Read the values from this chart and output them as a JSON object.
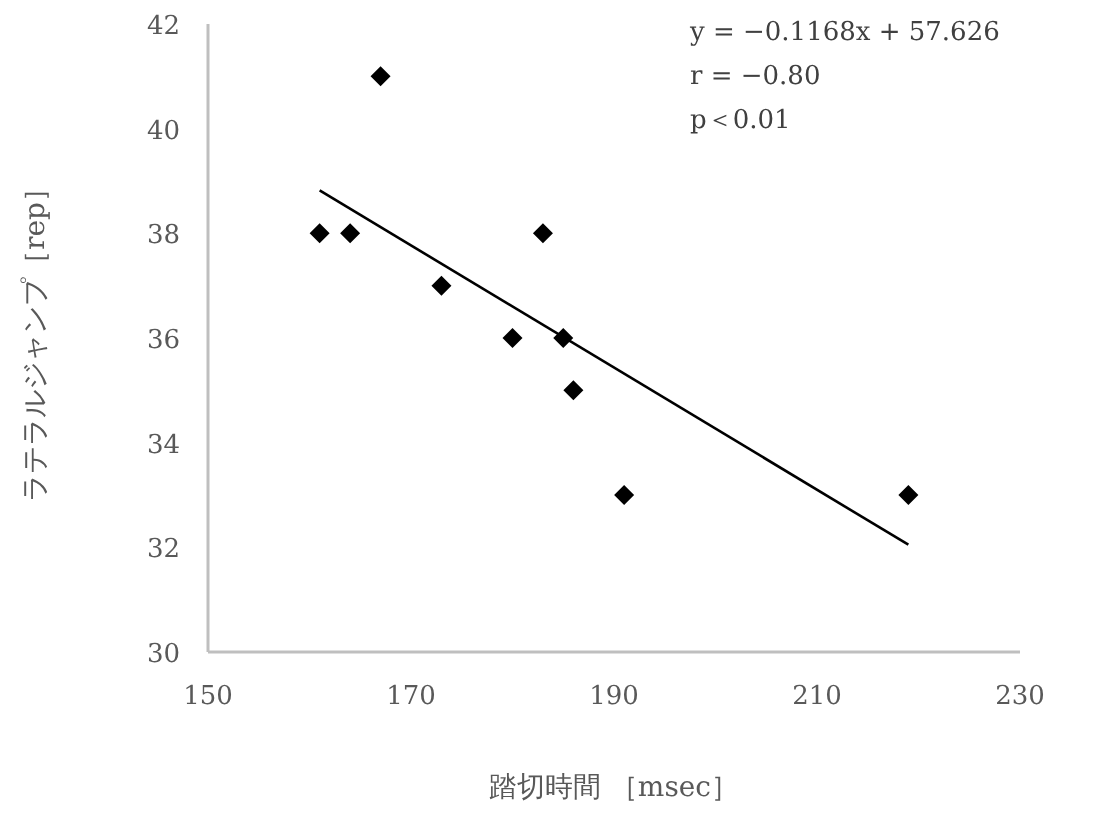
{
  "chart_data": {
    "type": "scatter",
    "xlabel": "踏切時間 ［msec］",
    "ylabel": "ラテラルジャンプ［rep］",
    "annotations": [
      "y = −0.1168x + 57.626",
      "r = −0.80",
      "p＜0.01"
    ],
    "series": [
      {
        "color": "#000000",
        "marker": "diamond",
        "x": [
          161,
          164,
          167,
          173,
          180,
          183,
          185,
          186,
          191,
          219
        ],
        "values": [
          38,
          38,
          41,
          37,
          36,
          38,
          36,
          35,
          33,
          33
        ]
      },
      {
        "type": "line",
        "color": "#000000",
        "marker": "none",
        "x": [
          161,
          219
        ],
        "values": [
          38.82,
          32.05
        ]
      }
    ],
    "xlim": [
      150,
      230
    ],
    "ylim": [
      30,
      42
    ],
    "xticks": [
      150,
      170,
      190,
      210,
      230
    ],
    "yticks": [
      30,
      32,
      34,
      36,
      38,
      40,
      42
    ],
    "grid": false
  }
}
